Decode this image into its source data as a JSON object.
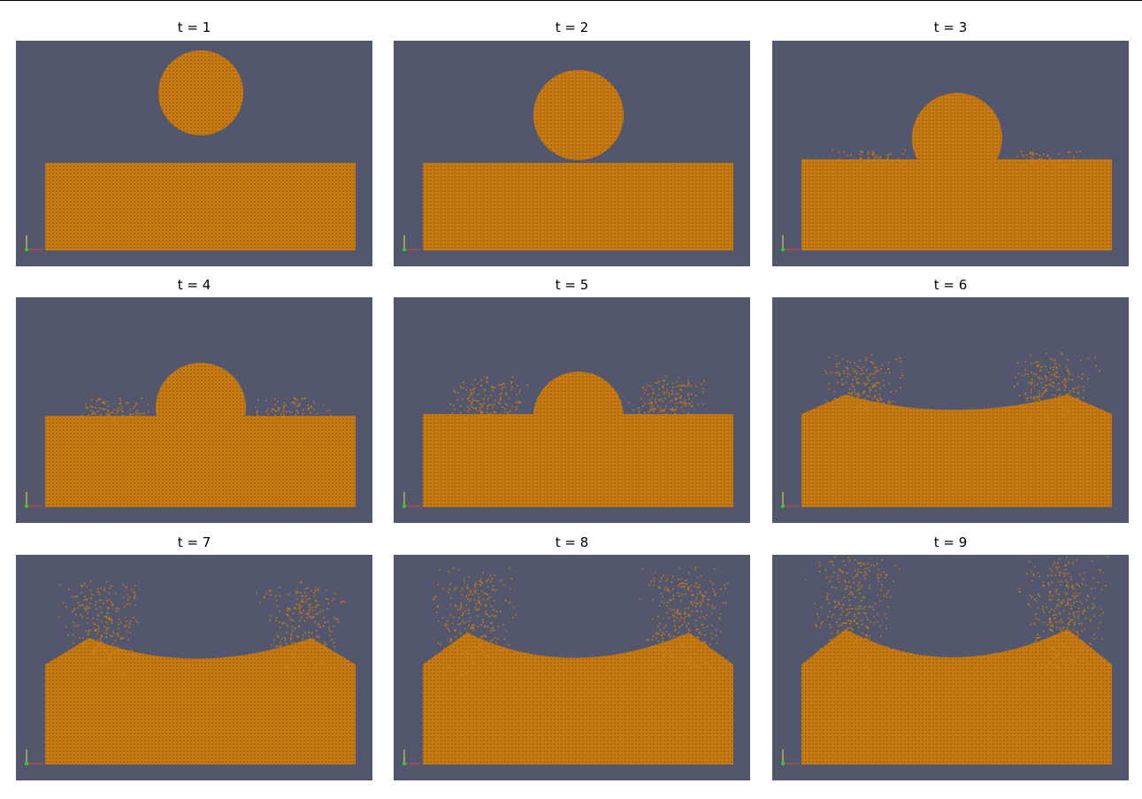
{
  "figure": {
    "background_color": "#52576e",
    "particle_color": "#c87a12",
    "frames": [
      {
        "id": 1,
        "label": "t = 1",
        "ball": true,
        "splash": 0,
        "crater": 0
      },
      {
        "id": 2,
        "label": "t = 2",
        "ball": true,
        "splash": 0,
        "crater": 0
      },
      {
        "id": 3,
        "label": "t = 3",
        "ball": true,
        "splash": 0.05,
        "crater": 0.1
      },
      {
        "id": 4,
        "label": "t = 4",
        "ball": true,
        "splash": 0.15,
        "crater": 0.2
      },
      {
        "id": 5,
        "label": "t = 5",
        "ball": true,
        "splash": 0.35,
        "crater": 0.3
      },
      {
        "id": 6,
        "label": "t = 6",
        "ball": false,
        "splash": 0.55,
        "crater": 0.45
      },
      {
        "id": 7,
        "label": "t = 7",
        "ball": false,
        "splash": 0.75,
        "crater": 0.6
      },
      {
        "id": 8,
        "label": "t = 8",
        "ball": false,
        "splash": 0.9,
        "crater": 0.75
      },
      {
        "id": 9,
        "label": "t = 9",
        "ball": false,
        "splash": 1.0,
        "crater": 0.85
      }
    ]
  }
}
